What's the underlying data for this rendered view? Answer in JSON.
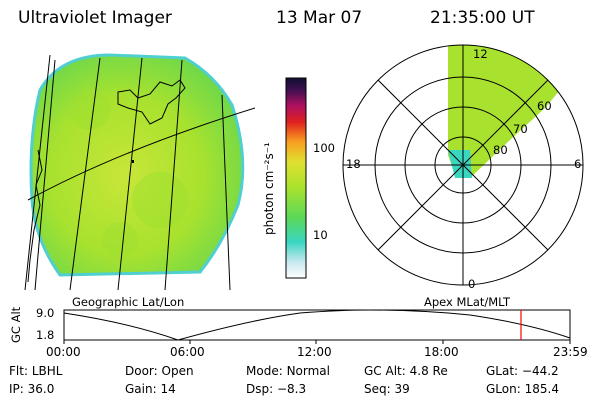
{
  "header": {
    "title": "Ultraviolet Imager",
    "date": "13 Mar 07",
    "time": "21:35:00 UT"
  },
  "colorbar": {
    "unit_label": "photon cm⁻²s⁻¹",
    "ticks": [
      "100",
      "10"
    ]
  },
  "polar_plot": {
    "mlt_labels": [
      "12",
      "18",
      "6",
      "0"
    ],
    "mlat_labels": [
      "60",
      "70",
      "80"
    ]
  },
  "panels": {
    "left_caption": "Geographic Lat/Lon",
    "right_caption": "Apex MLat/MLT"
  },
  "altitude_strip": {
    "axis_label": "GC Alt",
    "ymax": "9.0",
    "ymin": "1.8",
    "time_ticks": [
      "00:00",
      "06:00",
      "12:00",
      "18:00",
      "23:59"
    ],
    "marker_color": "#ff0000"
  },
  "info_rows": [
    [
      {
        "label": "Flt:",
        "value": "LBHL"
      },
      {
        "label": "Door:",
        "value": "Open"
      },
      {
        "label": "Mode:",
        "value": "Normal"
      },
      {
        "label": "GC Alt:",
        "value": "4.8 Re"
      },
      {
        "label": "GLat:",
        "value": "−44.2"
      }
    ],
    [
      {
        "label": "IP:",
        "value": "36.0"
      },
      {
        "label": "Gain:",
        "value": "14"
      },
      {
        "label": "Dsp:",
        "value": "−8.3"
      },
      {
        "label": "Seq:",
        "value": "39"
      },
      {
        "label": "GLon:",
        "value": "185.4"
      }
    ]
  ],
  "colors": {
    "emission_green": "#8fde2a",
    "emission_cyan": "#3ad6c0",
    "highlight_red": "#ff0000"
  }
}
